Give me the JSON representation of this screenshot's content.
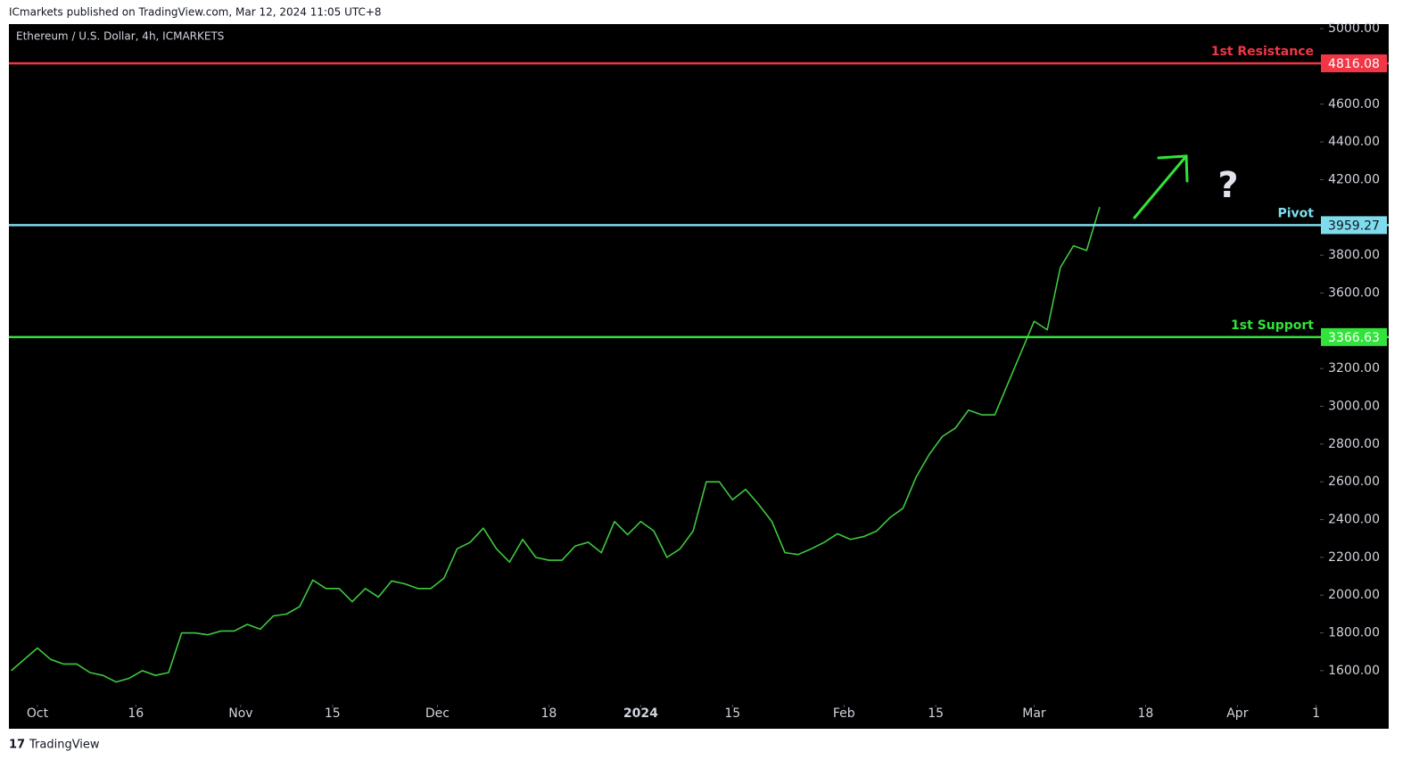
{
  "header": "ICmarkets published on TradingView.com, Mar 12, 2024 11:05 UTC+8",
  "footer": "TradingView",
  "chart_data": {
    "type": "line",
    "title": "Ethereum / U.S. Dollar, 4h, ICMARKETS",
    "color": "#3ec93e",
    "x": [
      -4,
      0,
      2,
      4,
      6,
      8,
      10,
      12,
      14,
      16,
      18,
      20,
      22,
      24,
      26,
      28,
      30,
      32,
      34,
      36,
      38,
      40,
      42,
      44,
      46,
      48,
      50,
      52,
      54,
      56,
      58,
      60,
      62,
      64,
      66,
      68,
      70,
      72,
      74,
      76,
      78,
      80,
      82,
      84,
      86,
      88,
      90,
      92,
      94,
      96,
      98,
      100,
      102,
      104,
      106,
      108,
      110,
      112,
      114,
      116,
      118,
      120,
      122,
      124,
      126,
      128,
      130,
      132,
      134,
      136,
      138,
      140,
      142,
      144,
      146,
      148,
      150,
      152,
      154,
      156,
      158,
      160,
      162
    ],
    "values": [
      1600,
      1720,
      1660,
      1635,
      1635,
      1590,
      1575,
      1540,
      1560,
      1600,
      1575,
      1590,
      1800,
      1800,
      1790,
      1810,
      1810,
      1845,
      1820,
      1890,
      1900,
      1940,
      2080,
      2035,
      2035,
      1965,
      2035,
      1990,
      2075,
      2060,
      2035,
      2035,
      2090,
      2245,
      2280,
      2355,
      2245,
      2175,
      2295,
      2200,
      2185,
      2185,
      2260,
      2280,
      2225,
      2390,
      2320,
      2390,
      2340,
      2200,
      2245,
      2340,
      2600,
      2600,
      2505,
      2560,
      2480,
      2390,
      2225,
      2215,
      2245,
      2280,
      2325,
      2295,
      2310,
      2340,
      2410,
      2460,
      2625,
      2745,
      2840,
      2885,
      2980,
      2955,
      2955,
      3120,
      3285,
      3450,
      3405,
      3735,
      3850,
      3825,
      4055
    ],
    "xlim": [
      -4.35,
      195.6
    ],
    "ylim": [
      1420,
      5024
    ],
    "xticks": [
      {
        "value": 0,
        "label": "Oct"
      },
      {
        "value": 15,
        "label": "16"
      },
      {
        "value": 31,
        "label": "Nov"
      },
      {
        "value": 45,
        "label": "15"
      },
      {
        "value": 61,
        "label": "Dec"
      },
      {
        "value": 78,
        "label": "18"
      },
      {
        "value": 92,
        "label": "2024"
      },
      {
        "value": 106,
        "label": "15"
      },
      {
        "value": 123,
        "label": "Feb"
      },
      {
        "value": 137,
        "label": "15"
      },
      {
        "value": 152,
        "label": "Mar"
      },
      {
        "value": 169,
        "label": "18"
      },
      {
        "value": 183,
        "label": "Apr"
      },
      {
        "value": 195,
        "label": "1"
      }
    ],
    "yticks": [
      {
        "value": 5000,
        "label": "5000.00"
      },
      {
        "value": 4600,
        "label": "4600.00"
      },
      {
        "value": 4400,
        "label": "4400.00"
      },
      {
        "value": 4200,
        "label": "4200.00"
      },
      {
        "value": 3800,
        "label": "3800.00"
      },
      {
        "value": 3600,
        "label": "3600.00"
      },
      {
        "value": 3200,
        "label": "3200.00"
      },
      {
        "value": 3000,
        "label": "3000.00"
      },
      {
        "value": 2800,
        "label": "2800.00"
      },
      {
        "value": 2600,
        "label": "2600.00"
      },
      {
        "value": 2400,
        "label": "2400.00"
      },
      {
        "value": 2200,
        "label": "2200.00"
      },
      {
        "value": 2000,
        "label": "2000.00"
      },
      {
        "value": 1800,
        "label": "1800.00"
      },
      {
        "value": 1600,
        "label": "1600.00"
      }
    ],
    "levels": [
      {
        "label": "1st Resistance",
        "value": 4816.08,
        "color": "#f23645"
      },
      {
        "label": "Pivot",
        "value": 3959.27,
        "color": "#7fdcec"
      },
      {
        "label": "1st Support",
        "value": 3366.63,
        "color": "#31e33a"
      }
    ],
    "annotation": "?"
  }
}
